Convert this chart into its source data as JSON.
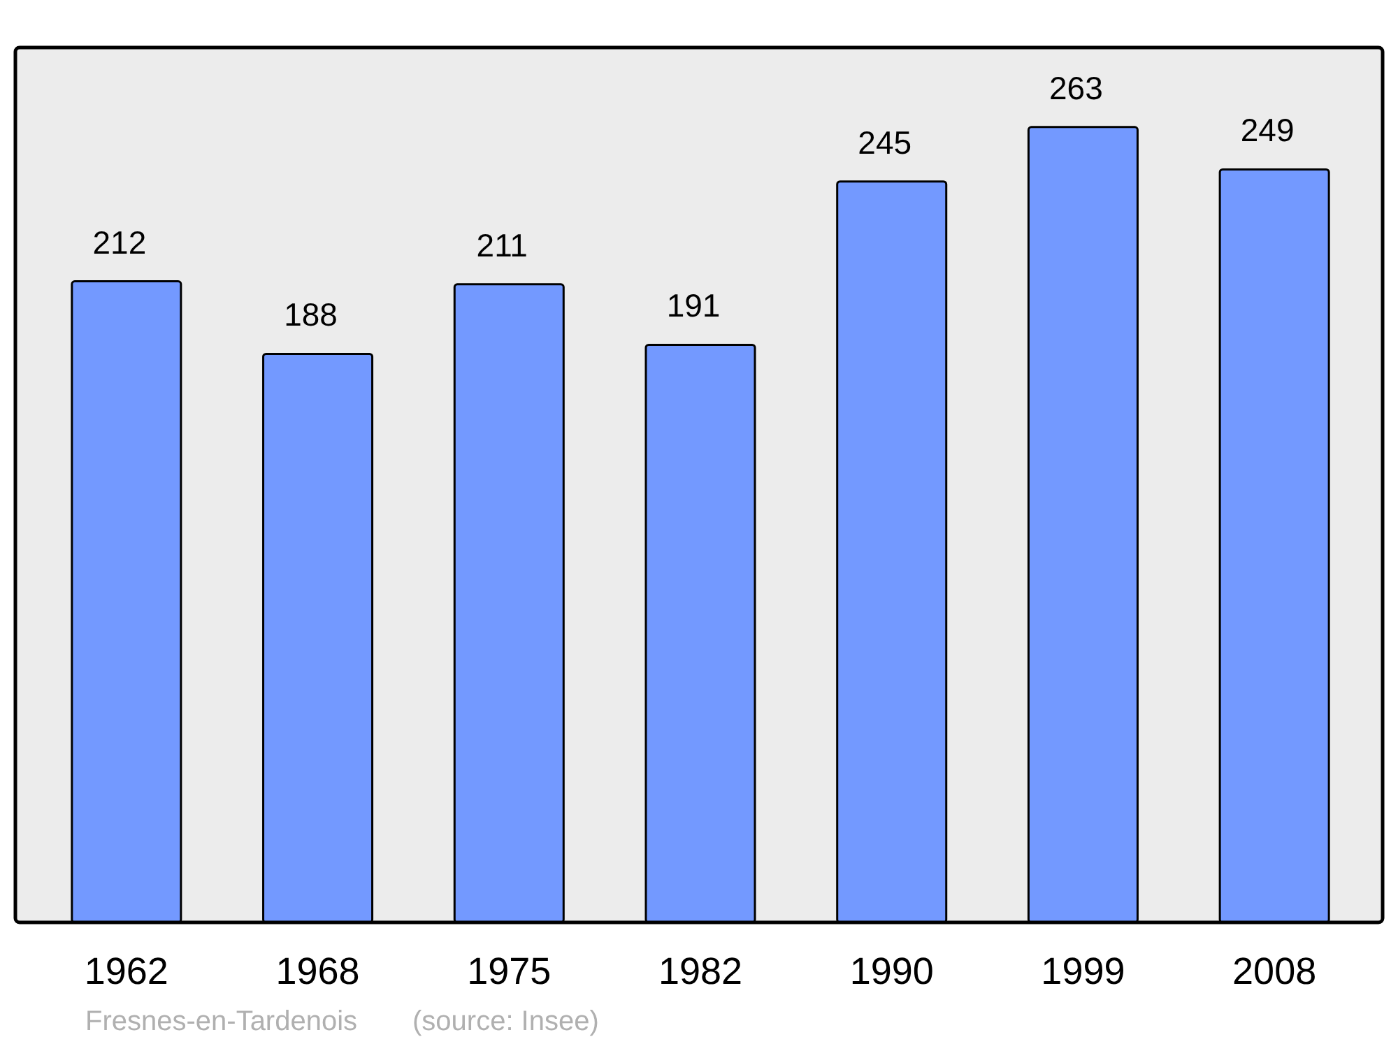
{
  "chart_data": {
    "type": "bar",
    "categories": [
      "1962",
      "1968",
      "1975",
      "1982",
      "1990",
      "1999",
      "2008"
    ],
    "values": [
      212,
      188,
      211,
      191,
      245,
      263,
      249
    ],
    "color": "#7399ff",
    "data_labels": true,
    "annotations": [
      "Fresnes-en-Tardenois",
      "(source: Insee)"
    ]
  }
}
